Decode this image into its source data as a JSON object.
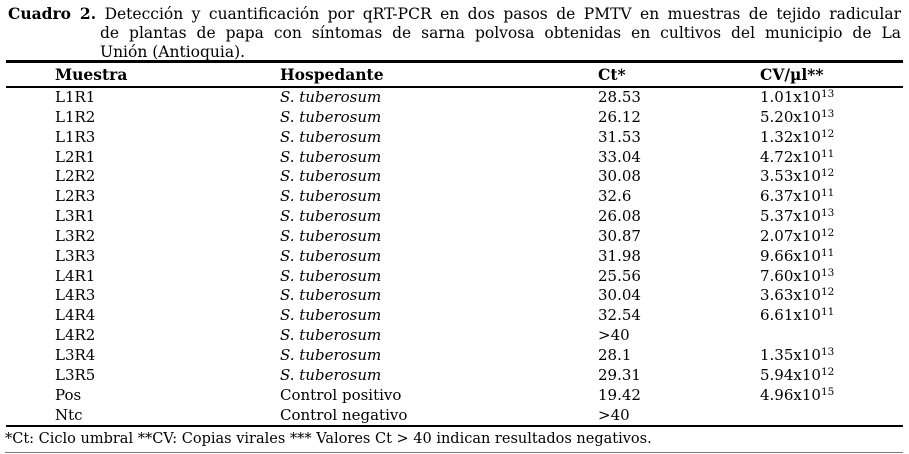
{
  "title": {
    "label": "Cuadro 2.",
    "line1": "Detección y cuantificación por qRT-PCR en dos pasos de PMTV en muestras de tejido radicular",
    "line2": "de plantas de papa con síntomas de sarna polvosa obtenidas en cultivos del municipio de La",
    "line3": "Unión (Antioquia)."
  },
  "table": {
    "columns": [
      "Muestra",
      "Hospedante",
      "Ct*",
      "CV/µl**"
    ],
    "rows": [
      {
        "muestra": "L1R1",
        "hospedante": "S. tuberosum",
        "italic": true,
        "ct": "28.53",
        "cv_base": "1.01x10",
        "cv_exp": "13"
      },
      {
        "muestra": "L1R2",
        "hospedante": "S. tuberosum",
        "italic": true,
        "ct": "26.12",
        "cv_base": "5.20x10",
        "cv_exp": "13"
      },
      {
        "muestra": "L1R3",
        "hospedante": "S. tuberosum",
        "italic": true,
        "ct": "31.53",
        "cv_base": "1.32x10",
        "cv_exp": "12"
      },
      {
        "muestra": "L2R1",
        "hospedante": "S. tuberosum",
        "italic": true,
        "ct": "33.04",
        "cv_base": "4.72x10",
        "cv_exp": "11"
      },
      {
        "muestra": "L2R2",
        "hospedante": "S. tuberosum",
        "italic": true,
        "ct": "30.08",
        "cv_base": "3.53x10",
        "cv_exp": "12"
      },
      {
        "muestra": "L2R3",
        "hospedante": "S. tuberosum",
        "italic": true,
        "ct": "32.6",
        "cv_base": "6.37x10",
        "cv_exp": "11"
      },
      {
        "muestra": "L3R1",
        "hospedante": "S. tuberosum",
        "italic": true,
        "ct": "26.08",
        "cv_base": "5.37x10",
        "cv_exp": "13"
      },
      {
        "muestra": "L3R2",
        "hospedante": "S. tuberosum",
        "italic": true,
        "ct": "30.87",
        "cv_base": "2.07x10",
        "cv_exp": "12"
      },
      {
        "muestra": "L3R3",
        "hospedante": "S. tuberosum",
        "italic": true,
        "ct": "31.98",
        "cv_base": "9.66x10",
        "cv_exp": "11"
      },
      {
        "muestra": "L4R1",
        "hospedante": "S. tuberosum",
        "italic": true,
        "ct": "25.56",
        "cv_base": "7.60x10",
        "cv_exp": "13"
      },
      {
        "muestra": "L4R3",
        "hospedante": "S. tuberosum",
        "italic": true,
        "ct": "30.04",
        "cv_base": "3.63x10",
        "cv_exp": "12"
      },
      {
        "muestra": "L4R4",
        "hospedante": "S. tuberosum",
        "italic": true,
        "ct": "32.54",
        "cv_base": "6.61x10",
        "cv_exp": "11"
      },
      {
        "muestra": "L4R2",
        "hospedante": "S. tuberosum",
        "italic": true,
        "ct": ">40",
        "cv_base": "",
        "cv_exp": ""
      },
      {
        "muestra": "L3R4",
        "hospedante": "S. tuberosum",
        "italic": true,
        "ct": "28.1",
        "cv_base": "1.35x10",
        "cv_exp": "13"
      },
      {
        "muestra": "L3R5",
        "hospedante": "S. tuberosum",
        "italic": true,
        "ct": "29.31",
        "cv_base": "5.94x10",
        "cv_exp": "12"
      },
      {
        "muestra": "Pos",
        "hospedante": "Control positivo",
        "italic": false,
        "ct": "19.42",
        "cv_base": "4.96x10",
        "cv_exp": "15"
      },
      {
        "muestra": "Ntc",
        "hospedante": "Control negativo",
        "italic": false,
        "ct": ">40",
        "cv_base": "",
        "cv_exp": ""
      }
    ]
  },
  "footnote": "*Ct: Ciclo umbral **CV: Copias virales *** Valores Ct > 40 indican resultados negativos."
}
